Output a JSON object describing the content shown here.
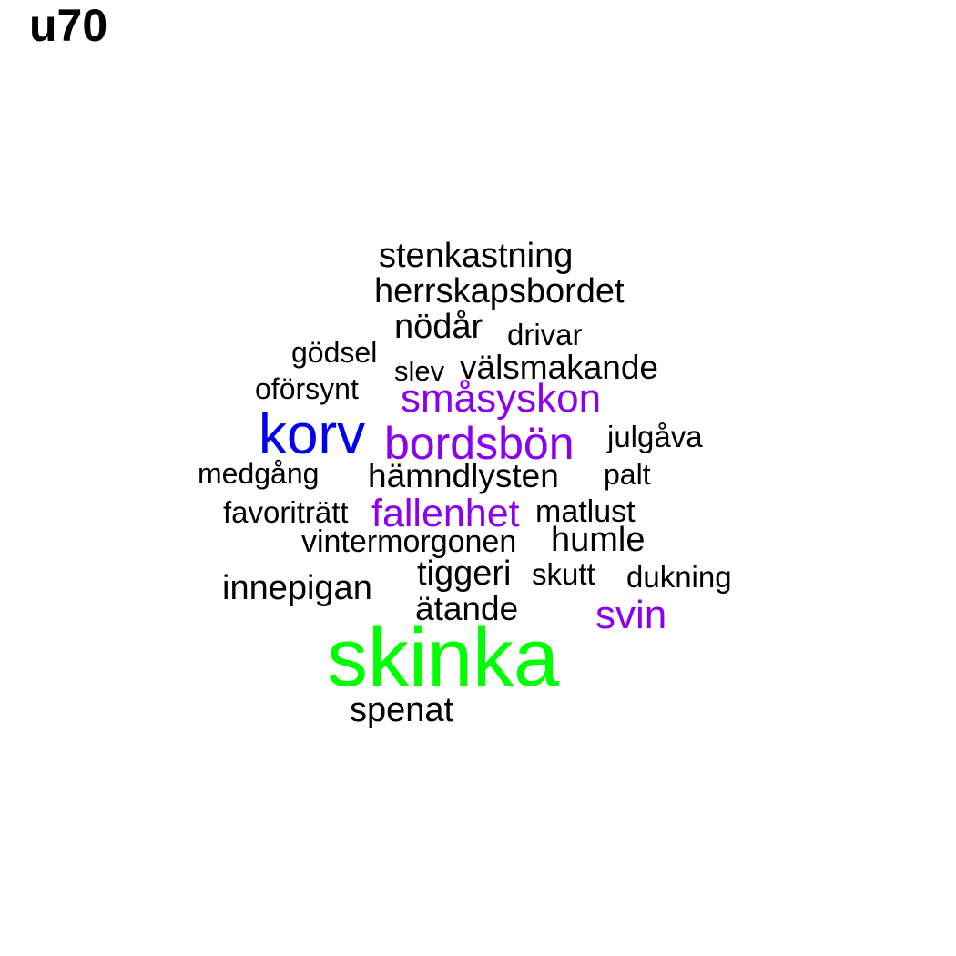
{
  "title": "u70",
  "colors": {
    "black": "#000000",
    "blue": "#0000ee",
    "purple": "#8b00ee",
    "green": "#00ff00"
  },
  "words": [
    {
      "text": "stenkastning",
      "color": "black"
    },
    {
      "text": "herrskapsbordet",
      "color": "black"
    },
    {
      "text": "nödår",
      "color": "black"
    },
    {
      "text": "drivar",
      "color": "black"
    },
    {
      "text": "gödsel",
      "color": "black"
    },
    {
      "text": "slev",
      "color": "black"
    },
    {
      "text": "välsmakande",
      "color": "black"
    },
    {
      "text": "oförsynt",
      "color": "black"
    },
    {
      "text": "småsyskon",
      "color": "purple"
    },
    {
      "text": "korv",
      "color": "blue"
    },
    {
      "text": "bordsbön",
      "color": "purple"
    },
    {
      "text": "julgåva",
      "color": "black"
    },
    {
      "text": "medgång",
      "color": "black"
    },
    {
      "text": "hämndlysten",
      "color": "black"
    },
    {
      "text": "palt",
      "color": "black"
    },
    {
      "text": "favoriträtt",
      "color": "black"
    },
    {
      "text": "fallenhet",
      "color": "purple"
    },
    {
      "text": "matlust",
      "color": "black"
    },
    {
      "text": "vintermorgonen",
      "color": "black"
    },
    {
      "text": "humle",
      "color": "black"
    },
    {
      "text": "innepigan",
      "color": "black"
    },
    {
      "text": "tiggeri",
      "color": "black"
    },
    {
      "text": "skutt",
      "color": "black"
    },
    {
      "text": "dukning",
      "color": "black"
    },
    {
      "text": "ätande",
      "color": "black"
    },
    {
      "text": "svin",
      "color": "purple"
    },
    {
      "text": "skinka",
      "color": "green"
    },
    {
      "text": "spenat",
      "color": "black"
    }
  ]
}
